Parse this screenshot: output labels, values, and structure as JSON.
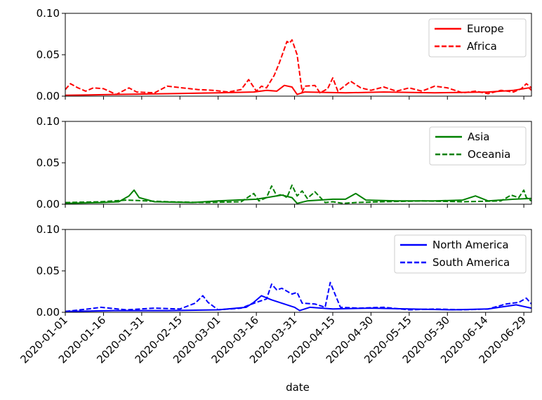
{
  "chart_data": {
    "type": "line",
    "xlabel": "date",
    "x_ticks": [
      "2020-01-01",
      "2020-01-16",
      "2020-01-31",
      "2020-02-15",
      "2020-03-01",
      "2020-03-16",
      "2020-03-31",
      "2020-04-15",
      "2020-04-30",
      "2020-05-15",
      "2020-05-30",
      "2020-06-14",
      "2020-06-29"
    ],
    "x_range": [
      "2020-01-01",
      "2020-07-02"
    ],
    "ylim": [
      0,
      0.1
    ],
    "y_ticks": [
      "0.00",
      "0.05",
      "0.10"
    ],
    "legend_position": "top-right",
    "panels": [
      {
        "series": [
          {
            "name": "Europe",
            "color": "#ff0000",
            "style": "solid",
            "points": [
              [
                "2020-01-01",
                0.001
              ],
              [
                "2020-01-20",
                0.002
              ],
              [
                "2020-02-10",
                0.003
              ],
              [
                "2020-03-01",
                0.004
              ],
              [
                "2020-03-15",
                0.005
              ],
              [
                "2020-03-20",
                0.007
              ],
              [
                "2020-03-24",
                0.006
              ],
              [
                "2020-03-27",
                0.013
              ],
              [
                "2020-03-30",
                0.011
              ],
              [
                "2020-04-01",
                0.002
              ],
              [
                "2020-04-04",
                0.005
              ],
              [
                "2020-04-20",
                0.004
              ],
              [
                "2020-05-05",
                0.005
              ],
              [
                "2020-05-25",
                0.004
              ],
              [
                "2020-06-15",
                0.005
              ],
              [
                "2020-06-25",
                0.007
              ],
              [
                "2020-07-01",
                0.01
              ],
              [
                "2020-07-02",
                0.007
              ]
            ]
          },
          {
            "name": "Africa",
            "color": "#ff0000",
            "style": "dashed",
            "points": [
              [
                "2020-01-01",
                0.008
              ],
              [
                "2020-01-03",
                0.015
              ],
              [
                "2020-01-06",
                0.01
              ],
              [
                "2020-01-09",
                0.006
              ],
              [
                "2020-01-12",
                0.01
              ],
              [
                "2020-01-16",
                0.009
              ],
              [
                "2020-01-21",
                0.002
              ],
              [
                "2020-01-26",
                0.01
              ],
              [
                "2020-01-29",
                0.005
              ],
              [
                "2020-02-05",
                0.004
              ],
              [
                "2020-02-10",
                0.012
              ],
              [
                "2020-02-16",
                0.01
              ],
              [
                "2020-02-22",
                0.008
              ],
              [
                "2020-02-28",
                0.007
              ],
              [
                "2020-03-05",
                0.005
              ],
              [
                "2020-03-10",
                0.008
              ],
              [
                "2020-03-13",
                0.02
              ],
              [
                "2020-03-16",
                0.006
              ],
              [
                "2020-03-18",
                0.012
              ],
              [
                "2020-03-20",
                0.01
              ],
              [
                "2020-03-23",
                0.025
              ],
              [
                "2020-03-25",
                0.04
              ],
              [
                "2020-03-27",
                0.057
              ],
              [
                "2020-03-28",
                0.066
              ],
              [
                "2020-03-29",
                0.064
              ],
              [
                "2020-03-30",
                0.068
              ],
              [
                "2020-04-01",
                0.05
              ],
              [
                "2020-04-03",
                0.005
              ],
              [
                "2020-04-04",
                0.012
              ],
              [
                "2020-04-08",
                0.013
              ],
              [
                "2020-04-10",
                0.004
              ],
              [
                "2020-04-13",
                0.009
              ],
              [
                "2020-04-15",
                0.022
              ],
              [
                "2020-04-17",
                0.006
              ],
              [
                "2020-04-22",
                0.018
              ],
              [
                "2020-04-26",
                0.01
              ],
              [
                "2020-04-30",
                0.007
              ],
              [
                "2020-05-05",
                0.011
              ],
              [
                "2020-05-10",
                0.006
              ],
              [
                "2020-05-15",
                0.01
              ],
              [
                "2020-05-20",
                0.006
              ],
              [
                "2020-05-25",
                0.012
              ],
              [
                "2020-05-30",
                0.01
              ],
              [
                "2020-06-05",
                0.004
              ],
              [
                "2020-06-10",
                0.006
              ],
              [
                "2020-06-15",
                0.003
              ],
              [
                "2020-06-20",
                0.007
              ],
              [
                "2020-06-25",
                0.005
              ],
              [
                "2020-06-28",
                0.009
              ],
              [
                "2020-06-30",
                0.015
              ],
              [
                "2020-07-02",
                0.01
              ]
            ]
          }
        ]
      },
      {
        "series": [
          {
            "name": "Asia",
            "color": "#008000",
            "style": "solid",
            "points": [
              [
                "2020-01-01",
                0.001
              ],
              [
                "2020-01-15",
                0.002
              ],
              [
                "2020-01-22",
                0.003
              ],
              [
                "2020-01-26",
                0.01
              ],
              [
                "2020-01-28",
                0.017
              ],
              [
                "2020-01-30",
                0.008
              ],
              [
                "2020-02-05",
                0.003
              ],
              [
                "2020-02-20",
                0.002
              ],
              [
                "2020-03-01",
                0.004
              ],
              [
                "2020-03-16",
                0.006
              ],
              [
                "2020-03-22",
                0.009
              ],
              [
                "2020-03-26",
                0.011
              ],
              [
                "2020-03-30",
                0.008
              ],
              [
                "2020-04-01",
                0.001
              ],
              [
                "2020-04-05",
                0.004
              ],
              [
                "2020-04-15",
                0.006
              ],
              [
                "2020-04-20",
                0.006
              ],
              [
                "2020-04-24",
                0.013
              ],
              [
                "2020-04-28",
                0.005
              ],
              [
                "2020-05-10",
                0.004
              ],
              [
                "2020-05-25",
                0.004
              ],
              [
                "2020-06-05",
                0.005
              ],
              [
                "2020-06-10",
                0.01
              ],
              [
                "2020-06-15",
                0.004
              ],
              [
                "2020-06-25",
                0.006
              ],
              [
                "2020-07-02",
                0.007
              ]
            ]
          },
          {
            "name": "Oceania",
            "color": "#008000",
            "style": "dashed",
            "points": [
              [
                "2020-01-01",
                0.002
              ],
              [
                "2020-01-15",
                0.003
              ],
              [
                "2020-01-25",
                0.005
              ],
              [
                "2020-02-10",
                0.003
              ],
              [
                "2020-02-25",
                0.002
              ],
              [
                "2020-03-10",
                0.003
              ],
              [
                "2020-03-15",
                0.013
              ],
              [
                "2020-03-17",
                0.004
              ],
              [
                "2020-03-20",
                0.008
              ],
              [
                "2020-03-22",
                0.022
              ],
              [
                "2020-03-24",
                0.01
              ],
              [
                "2020-03-26",
                0.012
              ],
              [
                "2020-03-28",
                0.008
              ],
              [
                "2020-03-30",
                0.023
              ],
              [
                "2020-04-01",
                0.01
              ],
              [
                "2020-04-03",
                0.016
              ],
              [
                "2020-04-05",
                0.007
              ],
              [
                "2020-04-08",
                0.015
              ],
              [
                "2020-04-12",
                0.002
              ],
              [
                "2020-04-15",
                0.003
              ],
              [
                "2020-04-19",
                0.001
              ],
              [
                "2020-04-24",
                0.002
              ],
              [
                "2020-05-05",
                0.003
              ],
              [
                "2020-05-20",
                0.004
              ],
              [
                "2020-06-05",
                0.003
              ],
              [
                "2020-06-20",
                0.004
              ],
              [
                "2020-06-24",
                0.011
              ],
              [
                "2020-06-27",
                0.008
              ],
              [
                "2020-06-29",
                0.017
              ],
              [
                "2020-06-30",
                0.008
              ],
              [
                "2020-07-02",
                0.004
              ]
            ]
          }
        ]
      },
      {
        "series": [
          {
            "name": "North America",
            "color": "#0000ff",
            "style": "solid",
            "points": [
              [
                "2020-01-01",
                0.001
              ],
              [
                "2020-01-20",
                0.002
              ],
              [
                "2020-02-10",
                0.002
              ],
              [
                "2020-03-01",
                0.003
              ],
              [
                "2020-03-12",
                0.006
              ],
              [
                "2020-03-15",
                0.012
              ],
              [
                "2020-03-18",
                0.02
              ],
              [
                "2020-03-22",
                0.015
              ],
              [
                "2020-03-27",
                0.01
              ],
              [
                "2020-03-31",
                0.006
              ],
              [
                "2020-04-02",
                0.002
              ],
              [
                "2020-04-06",
                0.006
              ],
              [
                "2020-04-15",
                0.004
              ],
              [
                "2020-04-30",
                0.005
              ],
              [
                "2020-05-15",
                0.004
              ],
              [
                "2020-06-01",
                0.003
              ],
              [
                "2020-06-15",
                0.004
              ],
              [
                "2020-06-26",
                0.009
              ],
              [
                "2020-07-02",
                0.005
              ]
            ]
          },
          {
            "name": "South America",
            "color": "#0000ff",
            "style": "dashed",
            "points": [
              [
                "2020-01-01",
                0.001
              ],
              [
                "2020-01-10",
                0.004
              ],
              [
                "2020-01-15",
                0.006
              ],
              [
                "2020-01-25",
                0.003
              ],
              [
                "2020-02-05",
                0.005
              ],
              [
                "2020-02-15",
                0.004
              ],
              [
                "2020-02-21",
                0.011
              ],
              [
                "2020-02-24",
                0.02
              ],
              [
                "2020-02-26",
                0.012
              ],
              [
                "2020-03-01",
                0.003
              ],
              [
                "2020-03-10",
                0.005
              ],
              [
                "2020-03-16",
                0.012
              ],
              [
                "2020-03-20",
                0.016
              ],
              [
                "2020-03-22",
                0.034
              ],
              [
                "2020-03-24",
                0.027
              ],
              [
                "2020-03-26",
                0.029
              ],
              [
                "2020-03-30",
                0.022
              ],
              [
                "2020-04-01",
                0.024
              ],
              [
                "2020-04-03",
                0.011
              ],
              [
                "2020-04-08",
                0.01
              ],
              [
                "2020-04-12",
                0.006
              ],
              [
                "2020-04-14",
                0.036
              ],
              [
                "2020-04-16",
                0.021
              ],
              [
                "2020-04-18",
                0.006
              ],
              [
                "2020-04-25",
                0.005
              ],
              [
                "2020-05-05",
                0.006
              ],
              [
                "2020-05-15",
                0.003
              ],
              [
                "2020-05-25",
                0.004
              ],
              [
                "2020-06-05",
                0.003
              ],
              [
                "2020-06-15",
                0.004
              ],
              [
                "2020-06-22",
                0.01
              ],
              [
                "2020-06-27",
                0.012
              ],
              [
                "2020-06-30",
                0.017
              ],
              [
                "2020-07-02",
                0.01
              ]
            ]
          }
        ]
      }
    ]
  }
}
